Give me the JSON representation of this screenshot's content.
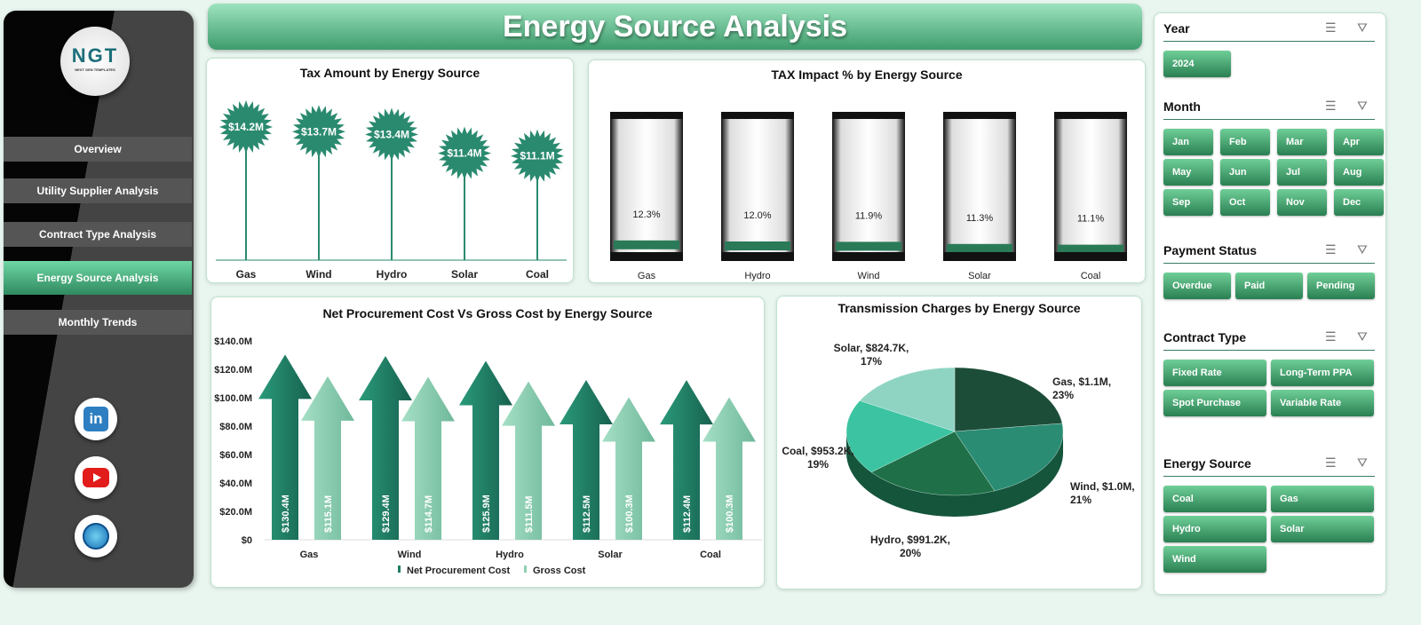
{
  "sidebar": {
    "logo_text": "NGT",
    "logo_sub": "NEXT GEN TEMPLATES",
    "items": [
      {
        "label": "Overview"
      },
      {
        "label": "Utility Supplier Analysis"
      },
      {
        "label": "Contract Type Analysis"
      },
      {
        "label": "Energy Source Analysis",
        "active": true
      },
      {
        "label": "Monthly Trends"
      }
    ],
    "social": [
      "linkedin-icon",
      "youtube-icon",
      "globe-icon"
    ]
  },
  "header": {
    "title": "Energy Source Analysis"
  },
  "colors": {
    "accent": "#2a8a6f",
    "dark": "#1e6f57",
    "light": "#8fd4b5"
  },
  "chart_data": [
    {
      "type": "bar",
      "title": "Tax Amount by Energy Source",
      "categories": [
        "Gas",
        "Wind",
        "Hydro",
        "Solar",
        "Coal"
      ],
      "values": [
        14.2,
        13.7,
        13.4,
        11.4,
        11.1
      ],
      "labels": [
        "$14.2M",
        "$13.7M",
        "$13.4M",
        "$11.4M",
        "$11.1M"
      ],
      "unit": "$M"
    },
    {
      "type": "bar",
      "title": "TAX Impact % by Energy Source",
      "categories": [
        "Gas",
        "Hydro",
        "Wind",
        "Solar",
        "Coal"
      ],
      "values": [
        12.3,
        12.0,
        11.9,
        11.3,
        11.1
      ],
      "labels": [
        "12.3%",
        "12.0%",
        "11.9%",
        "11.3%",
        "11.1%"
      ]
    },
    {
      "type": "bar",
      "title": "Net Procurement Cost Vs Gross Cost by Energy Source",
      "categories": [
        "Gas",
        "Wind",
        "Hydro",
        "Solar",
        "Coal"
      ],
      "ylim": [
        0,
        140
      ],
      "yticks": [
        "$0",
        "$20.0M",
        "$40.0M",
        "$60.0M",
        "$80.0M",
        "$100.0M",
        "$120.0M",
        "$140.0M"
      ],
      "legend": "bottom",
      "series": [
        {
          "name": "Net Procurement Cost",
          "values": [
            130.4,
            129.4,
            125.9,
            112.5,
            112.4
          ],
          "labels": [
            "$130.4M",
            "$129.4M",
            "$125.9M",
            "$112.5M",
            "$112.4M"
          ],
          "color": "#1f7f66"
        },
        {
          "name": "Gross Cost",
          "values": [
            115.1,
            114.7,
            111.5,
            100.3,
            100.3
          ],
          "labels": [
            "$115.1M",
            "$114.7M",
            "$111.5M",
            "$100.3M",
            "$100.3M"
          ],
          "color": "#8fd1b3"
        }
      ]
    },
    {
      "type": "pie",
      "title": "Transmission Charges by Energy Source",
      "slices": [
        {
          "name": "Gas",
          "value": "$1.1M",
          "pct": 23,
          "color": "#1c4d38"
        },
        {
          "name": "Wind",
          "value": "$1.0M",
          "pct": 21,
          "color": "#2a8c73"
        },
        {
          "name": "Hydro",
          "value": "$991.2K",
          "pct": 20,
          "color": "#1f7048"
        },
        {
          "name": "Coal",
          "value": "$953.2K",
          "pct": 19,
          "color": "#3cc4a2"
        },
        {
          "name": "Solar",
          "value": "$824.7K",
          "pct": 17,
          "color": "#8fd4c2"
        }
      ]
    }
  ],
  "slicers": [
    {
      "title": "Year",
      "items": [
        "2024"
      ]
    },
    {
      "title": "Month",
      "items": [
        "Jan",
        "Feb",
        "Mar",
        "Apr",
        "May",
        "Jun",
        "Jul",
        "Aug",
        "Sep",
        "Oct",
        "Nov",
        "Dec"
      ]
    },
    {
      "title": "Payment Status",
      "items": [
        "Overdue",
        "Paid",
        "Pending"
      ]
    },
    {
      "title": "Contract Type",
      "items": [
        "Fixed Rate",
        "Long-Term PPA",
        "Spot Purchase",
        "Variable Rate"
      ]
    },
    {
      "title": "Energy Source",
      "items": [
        "Coal",
        "Gas",
        "Hydro",
        "Solar",
        "Wind"
      ]
    }
  ]
}
